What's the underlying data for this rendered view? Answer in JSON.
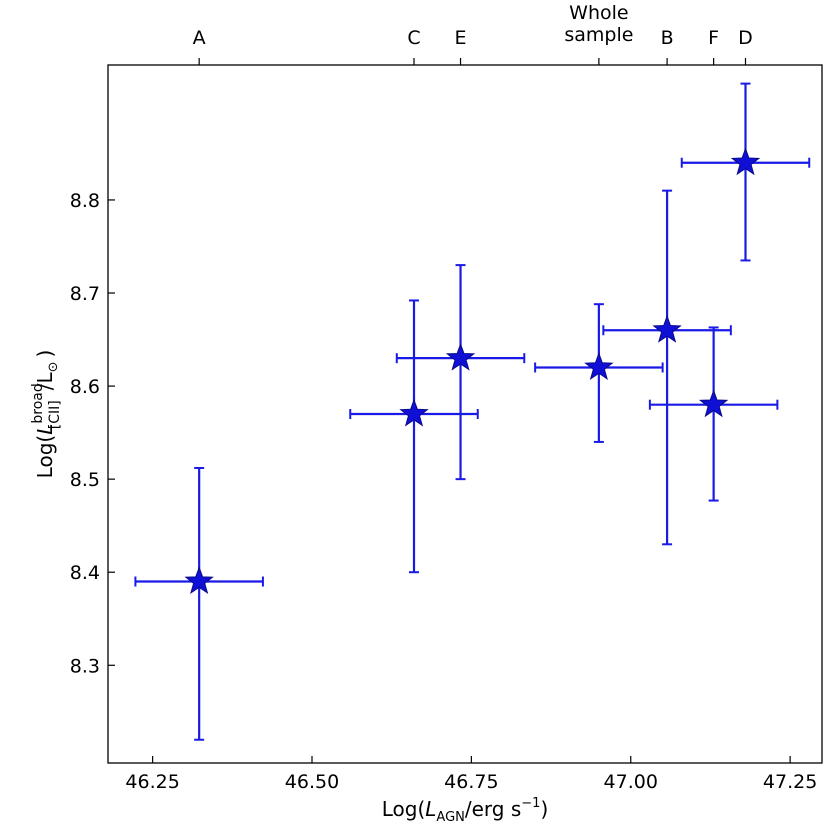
{
  "chart_data": {
    "type": "scatter",
    "title": "",
    "xlabel": {
      "pre": "Log(",
      "italic": "L",
      "sub": "AGN",
      "post": "/erg s",
      "sup": "−1",
      "close": ")"
    },
    "ylabel": {
      "pre": "Log(",
      "italic": "L",
      "sup": "broad",
      "sub": "[CII]",
      "post": "/L",
      "sun": "⊙",
      "close": ")"
    },
    "xlim": [
      46.18,
      47.3
    ],
    "ylim": [
      8.195,
      8.945
    ],
    "xticks": [
      "46.25",
      "46.50",
      "46.75",
      "47.00",
      "47.25"
    ],
    "yticks": [
      "8.3",
      "8.4",
      "8.5",
      "8.6",
      "8.7",
      "8.8"
    ],
    "marker_color": "#0f0fd6",
    "errorbar_color": "#1a1ae6",
    "points": [
      {
        "label": "A",
        "x": 46.323,
        "y": 8.39,
        "xerr": [
          0.1,
          0.1
        ],
        "yerr": [
          0.17,
          0.122
        ]
      },
      {
        "label": "C",
        "x": 46.66,
        "y": 8.57,
        "xerr": [
          0.1,
          0.1
        ],
        "yerr": [
          0.17,
          0.122
        ]
      },
      {
        "label": "E",
        "x": 46.733,
        "y": 8.63,
        "xerr": [
          0.1,
          0.1
        ],
        "yerr": [
          0.13,
          0.1
        ]
      },
      {
        "label": "Whole sample",
        "x": 46.95,
        "y": 8.62,
        "xerr": [
          0.1,
          0.1
        ],
        "yerr": [
          0.08,
          0.068
        ]
      },
      {
        "label": "B",
        "x": 47.057,
        "y": 8.66,
        "xerr": [
          0.1,
          0.1
        ],
        "yerr": [
          0.23,
          0.15
        ]
      },
      {
        "label": "F",
        "x": 47.13,
        "y": 8.58,
        "xerr": [
          0.1,
          0.1
        ],
        "yerr": [
          0.103,
          0.083
        ]
      },
      {
        "label": "D",
        "x": 47.18,
        "y": 8.84,
        "xerr": [
          0.1,
          0.1
        ],
        "yerr": [
          0.105,
          0.085
        ]
      }
    ]
  }
}
